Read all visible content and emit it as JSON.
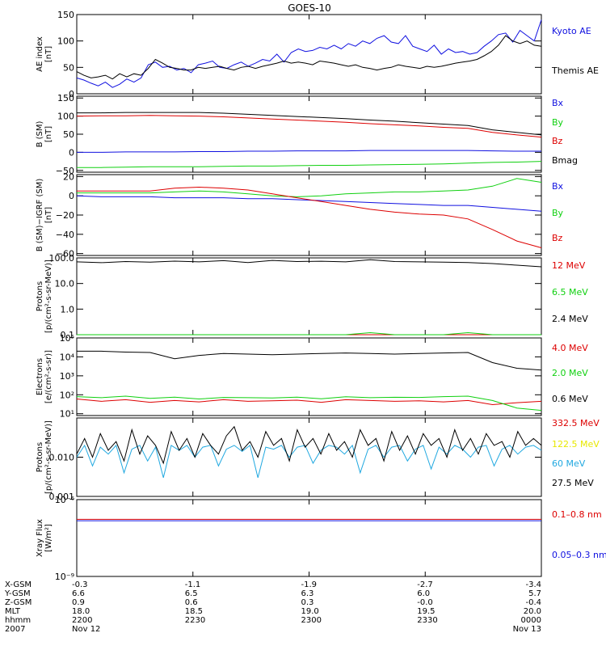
{
  "title": "GOES-10",
  "colors": {
    "black": "#000000",
    "blue": "#1010e0",
    "green": "#10d010",
    "red": "#dd0000",
    "cyan": "#20a8e0",
    "yellow": "#e8e800",
    "white": "#ffffff"
  },
  "chart_data": [
    {
      "type": "line",
      "id": "ae",
      "ylabel": [
        "AE index",
        "[nT]"
      ],
      "ylim": [
        0,
        150
      ],
      "yticks": [
        0,
        50,
        100,
        150
      ],
      "ytick_labels": [
        "0",
        "50",
        "100",
        "150"
      ],
      "series": [
        {
          "name": "Kyoto AE",
          "color": "#1010e0",
          "values": [
            30,
            26,
            20,
            15,
            22,
            12,
            18,
            28,
            22,
            30,
            55,
            60,
            50,
            52,
            45,
            48,
            40,
            55,
            58,
            62,
            50,
            48,
            55,
            60,
            52,
            58,
            65,
            62,
            75,
            60,
            78,
            85,
            80,
            82,
            88,
            85,
            92,
            85,
            95,
            90,
            100,
            95,
            105,
            110,
            98,
            95,
            110,
            90,
            85,
            80,
            92,
            75,
            85,
            78,
            80,
            75,
            78,
            90,
            100,
            112,
            115,
            98,
            120,
            110,
            100,
            140
          ]
        },
        {
          "name": "Themis AE",
          "color": "#000000",
          "values": [
            42,
            35,
            30,
            32,
            35,
            28,
            38,
            32,
            38,
            35,
            48,
            65,
            58,
            50,
            48,
            45,
            45,
            50,
            48,
            50,
            52,
            48,
            45,
            50,
            52,
            48,
            52,
            55,
            58,
            62,
            58,
            60,
            58,
            55,
            62,
            60,
            58,
            55,
            52,
            55,
            50,
            48,
            45,
            48,
            50,
            55,
            52,
            50,
            48,
            52,
            50,
            52,
            55,
            58,
            60,
            62,
            65,
            72,
            80,
            92,
            110,
            100,
            95,
            100,
            92,
            90
          ]
        }
      ]
    },
    {
      "type": "line",
      "id": "b_sm",
      "ylabel": [
        "B (SM)",
        "[nT]"
      ],
      "ylim": [
        -55,
        155
      ],
      "yticks": [
        -50,
        0,
        50,
        100,
        150
      ],
      "ytick_labels": [
        "−50",
        "0",
        "50",
        "100",
        "150"
      ],
      "series": [
        {
          "name": "Bx",
          "color": "#1010e0",
          "values": [
            0,
            0,
            1,
            1,
            1,
            2,
            2,
            3,
            3,
            4,
            4,
            4,
            5,
            5,
            5,
            5,
            5,
            4,
            3,
            3
          ]
        },
        {
          "name": "By",
          "color": "#10d010",
          "values": [
            -42,
            -42,
            -41,
            -40,
            -40,
            -40,
            -39,
            -38,
            -38,
            -37,
            -36,
            -36,
            -35,
            -34,
            -33,
            -32,
            -30,
            -28,
            -27,
            -25
          ]
        },
        {
          "name": "Bz",
          "color": "#dd0000",
          "values": [
            100,
            101,
            101,
            102,
            101,
            100,
            98,
            95,
            92,
            89,
            86,
            83,
            79,
            76,
            73,
            69,
            66,
            55,
            48,
            42
          ]
        },
        {
          "name": "Bmag",
          "color": "#000000",
          "values": [
            109,
            109,
            110,
            110,
            110,
            110,
            108,
            105,
            102,
            99,
            96,
            93,
            89,
            86,
            82,
            78,
            74,
            62,
            55,
            48
          ]
        }
      ]
    },
    {
      "type": "line",
      "id": "db_sm",
      "ylabel": [
        "B (SM)−IGRF (SM)",
        "[nT]"
      ],
      "ylim": [
        -62,
        22
      ],
      "yticks": [
        -60,
        -40,
        -20,
        0,
        20
      ],
      "ytick_labels": [
        "−60",
        "−40",
        "−20",
        "0",
        "20"
      ],
      "series": [
        {
          "name": "Bx",
          "color": "#1010e0",
          "values": [
            0,
            -1,
            -1,
            -1,
            -2,
            -2,
            -2,
            -3,
            -3,
            -4,
            -5,
            -6,
            -7,
            -8,
            -9,
            -10,
            -10,
            -12,
            -14,
            -16
          ]
        },
        {
          "name": "By",
          "color": "#10d010",
          "values": [
            3,
            3,
            3,
            3,
            4,
            5,
            4,
            2,
            0,
            -1,
            0,
            2,
            3,
            4,
            4,
            5,
            6,
            10,
            18,
            14
          ]
        },
        {
          "name": "Bz",
          "color": "#dd0000",
          "values": [
            5,
            5,
            5,
            5,
            8,
            9,
            8,
            6,
            2,
            -2,
            -6,
            -10,
            -14,
            -17,
            -19,
            -20,
            -24,
            -35,
            -47,
            -54
          ]
        }
      ]
    },
    {
      "type": "line",
      "id": "protons_low",
      "scale": "log",
      "ylabel": [
        "Protons",
        "[p/(cm²-s-sr-MeV)]"
      ],
      "ylim": [
        0.1,
        100
      ],
      "yticks": [
        0.1,
        1,
        10,
        100
      ],
      "ytick_labels": [
        "0.1",
        "1.0",
        "10.0",
        "100.0"
      ],
      "series": [
        {
          "name": "12 MeV",
          "color": "#dd0000",
          "values": [
            0.1,
            0.1,
            0.1,
            0.1,
            0.1,
            0.1,
            0.1,
            0.1,
            0.1,
            0.1,
            0.1,
            0.1,
            0.1,
            0.1,
            0.1,
            0.1,
            0.1,
            0.1,
            0.1,
            0.1
          ]
        },
        {
          "name": "6.5 MeV",
          "color": "#10d010",
          "values": [
            0.1,
            0.1,
            0.1,
            0.1,
            0.1,
            0.1,
            0.1,
            0.1,
            0.1,
            0.1,
            0.1,
            0.1,
            0.12,
            0.1,
            0.1,
            0.1,
            0.12,
            0.1,
            0.1,
            0.1
          ]
        },
        {
          "name": "2.4 MeV",
          "color": "#000000",
          "values": [
            70,
            65,
            72,
            68,
            75,
            70,
            78,
            66,
            80,
            72,
            74,
            70,
            85,
            72,
            70,
            68,
            66,
            60,
            52,
            45
          ]
        }
      ]
    },
    {
      "type": "line",
      "id": "electrons",
      "scale": "log",
      "ylabel": [
        "Electrons",
        "[e/(cm²-s-sr)]"
      ],
      "ylim": [
        8,
        100000
      ],
      "yticks": [
        10,
        100,
        1000,
        10000,
        100000
      ],
      "ytick_labels": [
        "10¹",
        "10²",
        "10³",
        "10⁴",
        "10⁵"
      ],
      "series": [
        {
          "name": "4.0 MeV",
          "color": "#dd0000",
          "values": [
            60,
            45,
            55,
            40,
            50,
            42,
            55,
            45,
            48,
            52,
            40,
            55,
            50,
            45,
            48,
            42,
            50,
            30,
            38,
            45
          ]
        },
        {
          "name": "2.0 MeV",
          "color": "#10d010",
          "values": [
            80,
            70,
            85,
            65,
            75,
            60,
            72,
            70,
            68,
            75,
            62,
            78,
            70,
            74,
            72,
            80,
            85,
            50,
            20,
            15
          ]
        },
        {
          "name": "0.6 MeV",
          "color": "#000000",
          "values": [
            20000,
            20000,
            18000,
            17000,
            8000,
            12000,
            15000,
            14000,
            13000,
            14000,
            15000,
            16000,
            15000,
            14000,
            15000,
            16000,
            17000,
            5000,
            2500,
            2000
          ]
        }
      ]
    },
    {
      "type": "line",
      "id": "protons_high",
      "scale": "log",
      "ylabel": [
        "Protons",
        "[p/(cm²-s-sr-MeV)]"
      ],
      "ylim": [
        0.001,
        0.1
      ],
      "yticks": [
        0.001,
        0.01
      ],
      "ytick_labels": [
        "0.001",
        "0.010"
      ],
      "series": [
        {
          "name": "332.5 MeV",
          "color": "#dd0000",
          "values": []
        },
        {
          "name": "122.5 MeV",
          "color": "#e8e800",
          "values": []
        },
        {
          "name": "60 MeV",
          "color": "#20a8e0",
          "values": [
            0.01,
            0.02,
            0.006,
            0.018,
            0.012,
            0.02,
            0.004,
            0.016,
            0.02,
            0.008,
            0.018,
            0.003,
            0.02,
            0.015,
            0.02,
            0.01,
            0.018,
            0.02,
            0.006,
            0.016,
            0.02,
            0.014,
            0.02,
            0.003,
            0.018,
            0.016,
            0.02,
            0.01,
            0.018,
            0.02,
            0.007,
            0.015,
            0.02,
            0.018,
            0.012,
            0.02,
            0.004,
            0.016,
            0.02,
            0.01,
            0.018,
            0.02,
            0.008,
            0.016,
            0.02,
            0.005,
            0.018,
            0.012,
            0.02,
            0.016,
            0.01,
            0.018,
            0.02,
            0.006,
            0.016,
            0.02,
            0.012,
            0.018,
            0.02,
            0.015
          ]
        },
        {
          "name": "27.5 MeV",
          "color": "#000000",
          "values": [
            0.012,
            0.03,
            0.01,
            0.04,
            0.015,
            0.025,
            0.008,
            0.05,
            0.012,
            0.035,
            0.02,
            0.007,
            0.045,
            0.015,
            0.03,
            0.01,
            0.04,
            0.02,
            0.012,
            0.035,
            0.06,
            0.015,
            0.025,
            0.01,
            0.045,
            0.02,
            0.03,
            0.008,
            0.05,
            0.018,
            0.03,
            0.012,
            0.04,
            0.015,
            0.025,
            0.01,
            0.05,
            0.02,
            0.03,
            0.008,
            0.045,
            0.015,
            0.035,
            0.012,
            0.04,
            0.02,
            0.03,
            0.01,
            0.05,
            0.015,
            0.03,
            0.012,
            0.04,
            0.02,
            0.025,
            0.01,
            0.045,
            0.02,
            0.03,
            0.02
          ]
        }
      ]
    },
    {
      "type": "line",
      "id": "xray",
      "scale": "log",
      "ylabel": [
        "Xray  Flux",
        "[W/m²]"
      ],
      "ylim": [
        1e-09,
        1e-06
      ],
      "yticks": [
        1e-09,
        1e-06
      ],
      "ytick_labels": [
        "10⁻⁹",
        "10⁻⁶"
      ],
      "series": [
        {
          "name": "0.1–0.8 nm",
          "color": "#dd0000",
          "values": [
            1.7e-07,
            1.7e-07,
            1.7e-07,
            1.7e-07,
            1.7e-07,
            1.7e-07,
            1.7e-07,
            1.7e-07,
            1.7e-07,
            1.7e-07
          ]
        },
        {
          "name": "0.05–0.3 nm",
          "color": "#1010e0",
          "values": [
            1.5e-07,
            1.5e-07,
            1.5e-07,
            1.5e-07,
            1.5e-07,
            1.5e-07,
            1.5e-07,
            1.5e-07,
            1.5e-07,
            1.5e-07
          ]
        }
      ]
    }
  ],
  "footer": {
    "row_labels": [
      "X-GSM",
      "Y-GSM",
      "Z-GSM",
      "MLT",
      "hhmm",
      "2007"
    ],
    "columns": [
      [
        "-0.3",
        "6.6",
        "0.9",
        "18.0",
        "2200",
        "Nov 12"
      ],
      [
        "-1.1",
        "6.5",
        "0.6",
        "18.5",
        "2230",
        ""
      ],
      [
        "-1.9",
        "6.3",
        "0.3",
        "19.0",
        "2300",
        ""
      ],
      [
        "-2.7",
        "6.0",
        "-0.0",
        "19.5",
        "2330",
        ""
      ],
      [
        "-3.4",
        "5.7",
        "-0.4",
        "20.0",
        "0000",
        "Nov 13"
      ]
    ]
  }
}
